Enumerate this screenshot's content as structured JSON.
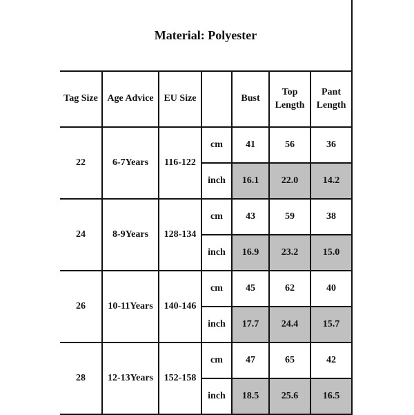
{
  "title": "Material: Polyester",
  "headers": {
    "tag": "Tag Size",
    "age": "Age Advice",
    "eu": "EU Size",
    "unit": "",
    "bust": "Bust",
    "top_1": "Top",
    "top_2": "Length",
    "pant_1": "Pant",
    "pant_2": "Length"
  },
  "highlight_color": "#c0c0c0",
  "rows": [
    {
      "tag": "22",
      "age": "6-7Years",
      "eu": "116-122",
      "cm": {
        "unit": "cm",
        "bust": "41",
        "top": "56",
        "pant": "36"
      },
      "inch": {
        "unit": "inch",
        "bust": "16.1",
        "top": "22.0",
        "pant": "14.2"
      }
    },
    {
      "tag": "24",
      "age": "8-9Years",
      "eu": "128-134",
      "cm": {
        "unit": "cm",
        "bust": "43",
        "top": "59",
        "pant": "38"
      },
      "inch": {
        "unit": "inch",
        "bust": "16.9",
        "top": "23.2",
        "pant": "15.0"
      }
    },
    {
      "tag": "26",
      "age": "10-11Years",
      "eu": "140-146",
      "cm": {
        "unit": "cm",
        "bust": "45",
        "top": "62",
        "pant": "40"
      },
      "inch": {
        "unit": "inch",
        "bust": "17.7",
        "top": "24.4",
        "pant": "15.7"
      }
    },
    {
      "tag": "28",
      "age": "12-13Years",
      "eu": "152-158",
      "cm": {
        "unit": "cm",
        "bust": "47",
        "top": "65",
        "pant": "42"
      },
      "inch": {
        "unit": "inch",
        "bust": "18.5",
        "top": "25.6",
        "pant": "16.5"
      }
    }
  ]
}
